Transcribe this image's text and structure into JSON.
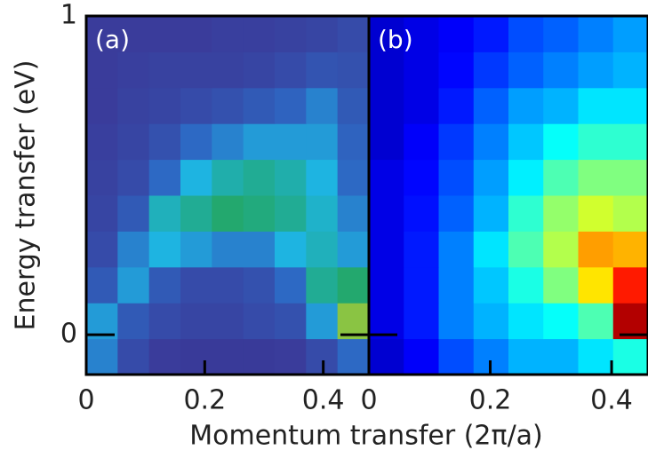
{
  "chart_data": [
    {
      "type": "heatmap",
      "title": "(a)",
      "xlabel": "Momentum transfer (2π/a)",
      "ylabel": "Energy transfer (eV)",
      "colormap": "parula",
      "xlim": [
        0,
        0.477
      ],
      "ylim": [
        -0.125,
        1
      ],
      "xticks": [
        0,
        0.2,
        0.4
      ],
      "yticks": [
        0,
        1
      ],
      "x_bins": [
        0,
        0.053,
        0.106,
        0.159,
        0.212,
        0.265,
        0.318,
        0.371,
        0.424,
        0.477
      ],
      "y_bins": [
        -0.125,
        -0.0125,
        0.1,
        0.2125,
        0.325,
        0.4375,
        0.55,
        0.6625,
        0.775,
        0.8875,
        1
      ],
      "z": [
        [
          0.45,
          0.3,
          0.25,
          0.22,
          0.22,
          0.22,
          0.25,
          0.3,
          0.4
        ],
        [
          0.5,
          0.35,
          0.3,
          0.28,
          0.28,
          0.3,
          0.32,
          0.5,
          0.8
        ],
        [
          0.35,
          0.5,
          0.35,
          0.3,
          0.3,
          0.32,
          0.4,
          0.65,
          0.7
        ],
        [
          0.3,
          0.45,
          0.55,
          0.5,
          0.45,
          0.45,
          0.55,
          0.6,
          0.5
        ],
        [
          0.28,
          0.35,
          0.6,
          0.65,
          0.7,
          0.68,
          0.65,
          0.58,
          0.45
        ],
        [
          0.27,
          0.3,
          0.4,
          0.55,
          0.62,
          0.65,
          0.62,
          0.55,
          0.4
        ],
        [
          0.26,
          0.28,
          0.32,
          0.4,
          0.45,
          0.5,
          0.5,
          0.5,
          0.38
        ],
        [
          0.25,
          0.27,
          0.28,
          0.3,
          0.32,
          0.35,
          0.38,
          0.45,
          0.35
        ],
        [
          0.25,
          0.26,
          0.27,
          0.27,
          0.27,
          0.28,
          0.3,
          0.33,
          0.32
        ],
        [
          0.25,
          0.25,
          0.25,
          0.25,
          0.26,
          0.26,
          0.27,
          0.28,
          0.3
        ]
      ]
    },
    {
      "type": "heatmap",
      "title": "(b)",
      "colormap": "jet",
      "xlim": [
        0,
        0.46
      ],
      "ylim": [
        -0.125,
        1
      ],
      "xticks": [
        0,
        0.2,
        0.4
      ],
      "x_bins": [
        0,
        0.0575,
        0.115,
        0.1725,
        0.23,
        0.2875,
        0.345,
        0.4025,
        0.46
      ],
      "y_bins": [
        -0.125,
        -0.0125,
        0.1,
        0.2125,
        0.325,
        0.4375,
        0.55,
        0.6625,
        0.775,
        0.8875,
        1
      ],
      "z": [
        [
          0.08,
          0.12,
          0.2,
          0.25,
          0.3,
          0.3,
          0.35,
          0.4
        ],
        [
          0.1,
          0.15,
          0.25,
          0.3,
          0.35,
          0.38,
          0.45,
          0.95
        ],
        [
          0.1,
          0.15,
          0.25,
          0.32,
          0.4,
          0.5,
          0.65,
          0.85
        ],
        [
          0.1,
          0.15,
          0.25,
          0.35,
          0.45,
          0.55,
          0.72,
          0.7
        ],
        [
          0.1,
          0.14,
          0.22,
          0.3,
          0.42,
          0.52,
          0.58,
          0.55
        ],
        [
          0.1,
          0.13,
          0.2,
          0.28,
          0.36,
          0.45,
          0.5,
          0.5
        ],
        [
          0.08,
          0.12,
          0.18,
          0.25,
          0.32,
          0.38,
          0.42,
          0.42
        ],
        [
          0.08,
          0.1,
          0.15,
          0.22,
          0.28,
          0.3,
          0.35,
          0.35
        ],
        [
          0.08,
          0.1,
          0.13,
          0.18,
          0.22,
          0.25,
          0.28,
          0.3
        ],
        [
          0.08,
          0.1,
          0.12,
          0.15,
          0.2,
          0.22,
          0.25,
          0.28
        ]
      ]
    }
  ]
}
